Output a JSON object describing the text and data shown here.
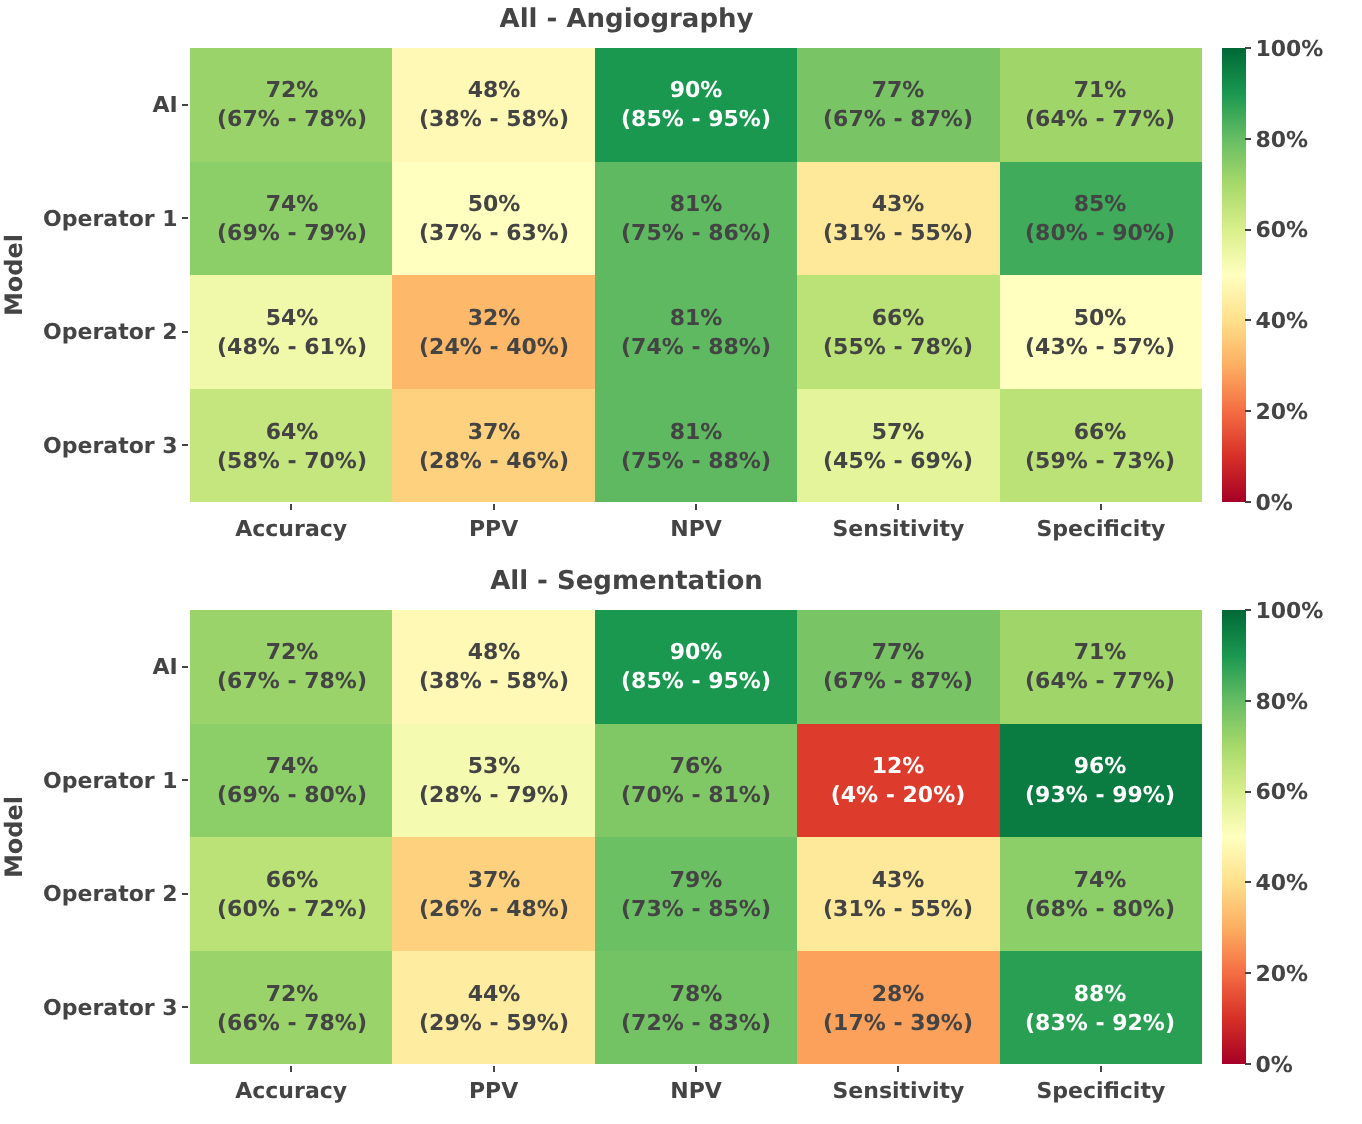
{
  "chart_data": [
    {
      "type": "heatmap",
      "title": "All - Angiography",
      "ylabel": "Model",
      "categories": [
        "Accuracy",
        "PPV",
        "NPV",
        "Sensitivity",
        "Specificity"
      ],
      "y_categories": [
        "AI",
        "Operator 1",
        "Operator 2",
        "Operator 3"
      ],
      "cells": [
        [
          72,
          48,
          90,
          77,
          71
        ],
        [
          74,
          50,
          81,
          43,
          85
        ],
        [
          54,
          32,
          81,
          66,
          50
        ],
        [
          64,
          37,
          81,
          57,
          66
        ]
      ],
      "cell_labels": [
        [
          "72%\n(67% - 78%)",
          "48%\n(38% - 58%)",
          "90%\n(85% - 95%)",
          "77%\n(67% - 87%)",
          "71%\n(64% - 77%)"
        ],
        [
          "74%\n(69% - 79%)",
          "50%\n(37% - 63%)",
          "81%\n(75% - 86%)",
          "43%\n(31% - 55%)",
          "85%\n(80% - 90%)"
        ],
        [
          "54%\n(48% - 61%)",
          "32%\n(24% - 40%)",
          "81%\n(74% - 88%)",
          "66%\n(55% - 78%)",
          "50%\n(43% - 57%)"
        ],
        [
          "64%\n(58% - 70%)",
          "37%\n(28% - 46%)",
          "81%\n(75% - 88%)",
          "57%\n(45% - 69%)",
          "66%\n(59% - 73%)"
        ]
      ],
      "clim": [
        0,
        100
      ],
      "cticks": [
        {
          "value": 0,
          "label": "0%"
        },
        {
          "value": 20,
          "label": "20%"
        },
        {
          "value": 40,
          "label": "40%"
        },
        {
          "value": 60,
          "label": "60%"
        },
        {
          "value": 80,
          "label": "80%"
        },
        {
          "value": 100,
          "label": "100%"
        }
      ]
    },
    {
      "type": "heatmap",
      "title": "All - Segmentation",
      "ylabel": "Model",
      "categories": [
        "Accuracy",
        "PPV",
        "NPV",
        "Sensitivity",
        "Specificity"
      ],
      "y_categories": [
        "AI",
        "Operator 1",
        "Operator 2",
        "Operator 3"
      ],
      "cells": [
        [
          72,
          48,
          90,
          77,
          71
        ],
        [
          74,
          53,
          76,
          12,
          96
        ],
        [
          66,
          37,
          79,
          43,
          74
        ],
        [
          72,
          44,
          78,
          28,
          88
        ]
      ],
      "cell_labels": [
        [
          "72%\n(67% - 78%)",
          "48%\n(38% - 58%)",
          "90%\n(85% - 95%)",
          "77%\n(67% - 87%)",
          "71%\n(64% - 77%)"
        ],
        [
          "74%\n(69% - 80%)",
          "53%\n(28% - 79%)",
          "76%\n(70% - 81%)",
          "12%\n(4% - 20%)",
          "96%\n(93% - 99%)"
        ],
        [
          "66%\n(60% - 72%)",
          "37%\n(26% - 48%)",
          "79%\n(73% - 85%)",
          "43%\n(31% - 55%)",
          "74%\n(68% - 80%)"
        ],
        [
          "72%\n(66% - 78%)",
          "44%\n(29% - 59%)",
          "78%\n(72% - 83%)",
          "28%\n(17% - 39%)",
          "88%\n(83% - 92%)"
        ]
      ],
      "clim": [
        0,
        100
      ],
      "cticks": [
        {
          "value": 0,
          "label": "0%"
        },
        {
          "value": 20,
          "label": "20%"
        },
        {
          "value": 40,
          "label": "40%"
        },
        {
          "value": 60,
          "label": "60%"
        },
        {
          "value": 80,
          "label": "80%"
        },
        {
          "value": 100,
          "label": "100%"
        }
      ]
    }
  ]
}
